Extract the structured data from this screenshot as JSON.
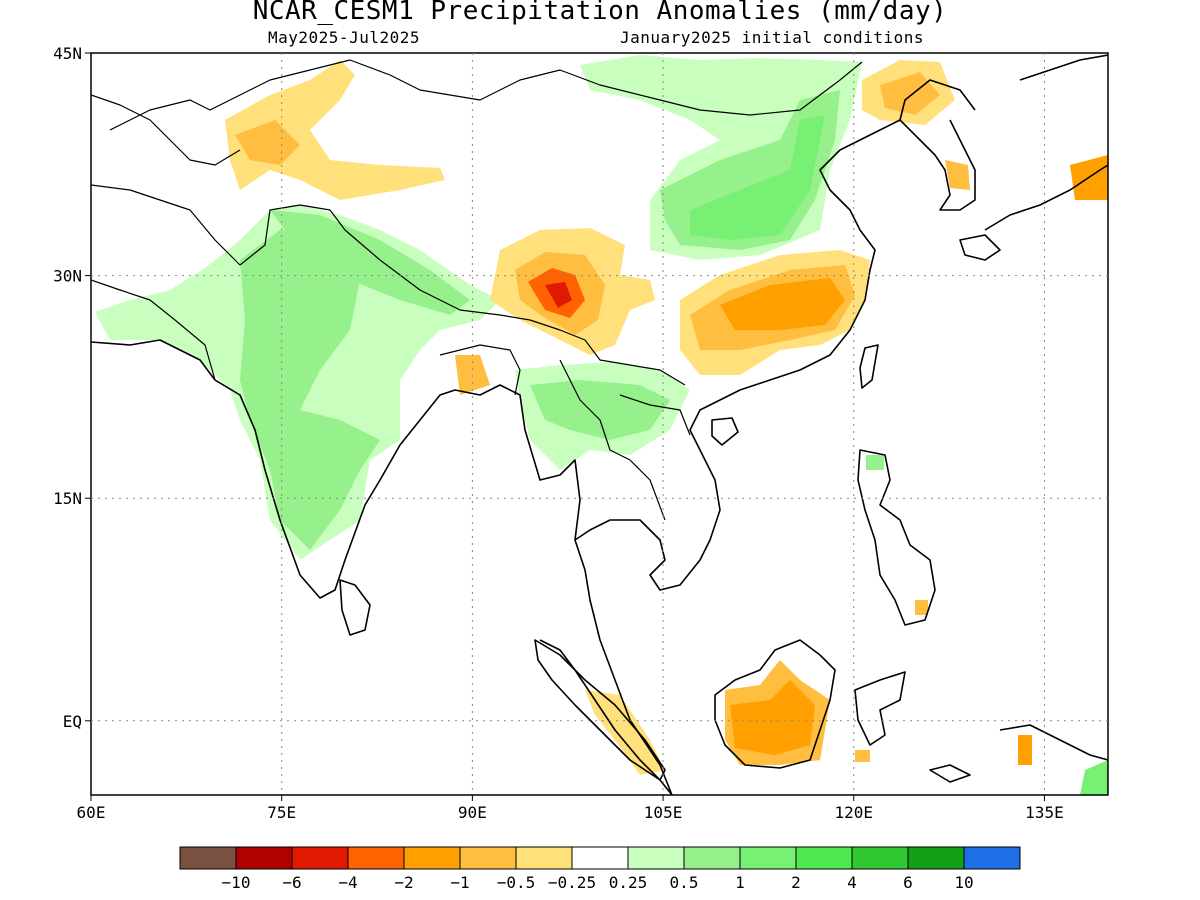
{
  "title": "NCAR_CESM1 Precipitation Anomalies (mm/day)",
  "period": "May2025-Jul2025",
  "init": "January2025 initial conditions",
  "map": {
    "lon_range": [
      60,
      140
    ],
    "lat_range": [
      -5,
      45
    ],
    "x_ticks": [
      {
        "lon": 60,
        "label": "60E"
      },
      {
        "lon": 75,
        "label": "75E"
      },
      {
        "lon": 90,
        "label": "90E"
      },
      {
        "lon": 105,
        "label": "105E"
      },
      {
        "lon": 120,
        "label": "120E"
      },
      {
        "lon": 135,
        "label": "135E"
      }
    ],
    "y_ticks": [
      {
        "lat": 45,
        "label": "45N"
      },
      {
        "lat": 30,
        "label": "30N"
      },
      {
        "lat": 15,
        "label": "15N"
      },
      {
        "lat": 0,
        "label": "EQ"
      }
    ],
    "grid": "dotted"
  },
  "colorbar": {
    "colors": [
      "#7a5040",
      "#b00000",
      "#e01a00",
      "#ff6200",
      "#ffa000",
      "#ffbe40",
      "#ffe07a",
      "#ffffff",
      "#c8ffbe",
      "#96f08c",
      "#78f073",
      "#50e850",
      "#32c832",
      "#14a014",
      "#1e6ee6"
    ],
    "labels": [
      "-10",
      "-6",
      "-4",
      "-2",
      "-1",
      "-0.5",
      "-0.25",
      "0.25",
      "0.5",
      "1",
      "2",
      "4",
      "6",
      "10"
    ]
  },
  "regions": [
    {
      "name": "west-india-wet",
      "level": 1,
      "color": "#78f073",
      "lon": 74,
      "lat": 22
    },
    {
      "name": "himalaya-wet",
      "level": 1,
      "color": "#78f073",
      "lon": 82,
      "lat": 31
    },
    {
      "name": "north-china-wet",
      "level": 1,
      "color": "#78f073",
      "lon": 106,
      "lat": 35
    },
    {
      "name": "indochina-wet",
      "level": 0.5,
      "color": "#96f08c",
      "lon": 98,
      "lat": 20
    },
    {
      "name": "tibet-dry",
      "level": -2,
      "color": "#ff6200",
      "lon": 96,
      "lat": 28
    },
    {
      "name": "yangtze-dry",
      "level": -1,
      "color": "#ffa000",
      "lon": 113,
      "lat": 28
    },
    {
      "name": "borneo-dry",
      "level": -1,
      "color": "#ffa000",
      "lon": 113,
      "lat": -1
    },
    {
      "name": "korea-dry",
      "level": -0.5,
      "color": "#ffbe40",
      "lon": 122,
      "lat": 41
    },
    {
      "name": "karakoram-dry",
      "level": -0.5,
      "color": "#ffbe40",
      "lon": 74,
      "lat": 37
    }
  ]
}
